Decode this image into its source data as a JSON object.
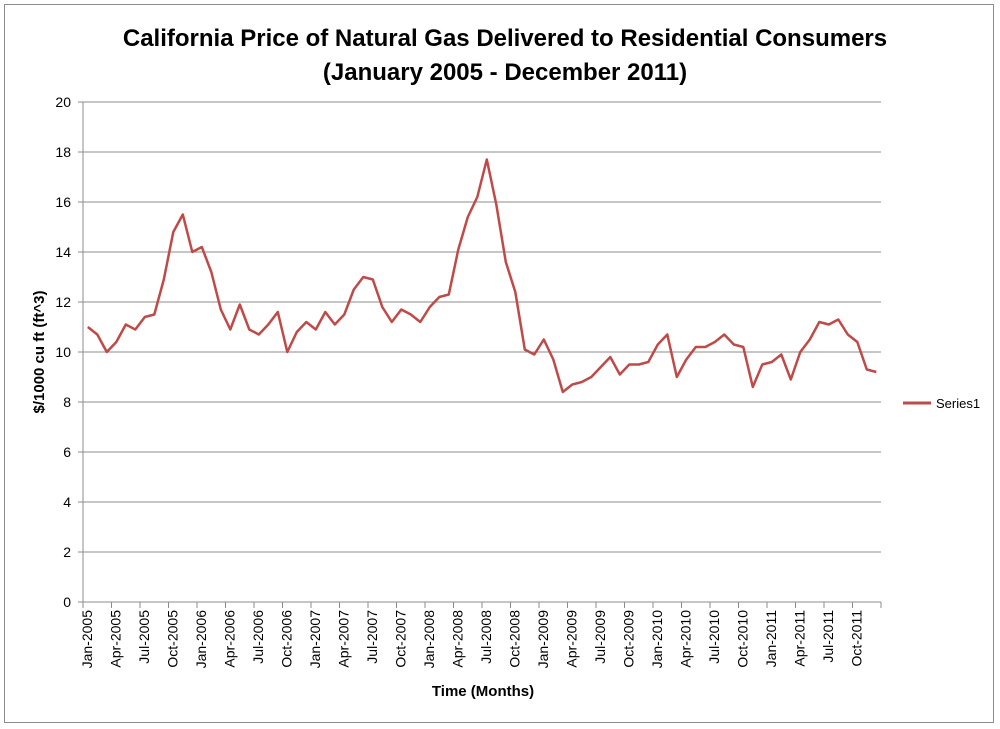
{
  "chart_data": {
    "type": "line",
    "title": [
      "California Price of Natural Gas Delivered to Residential Consumers",
      "(January 2005 - December 2011)"
    ],
    "xlabel": "Time (Months)",
    "ylabel": "$/1000  cu ft (ft^3)",
    "ylim": [
      0,
      20
    ],
    "yticks": [
      0,
      2,
      4,
      6,
      8,
      10,
      12,
      14,
      16,
      18,
      20
    ],
    "grid": true,
    "legend_position": "right",
    "x_tick_labels": [
      "Jan-2005",
      "Apr-2005",
      "Jul-2005",
      "Oct-2005",
      "Jan-2006",
      "Apr-2006",
      "Jul-2006",
      "Oct-2006",
      "Jan-2007",
      "Apr-2007",
      "Jul-2007",
      "Oct-2007",
      "Jan-2008",
      "Apr-2008",
      "Jul-2008",
      "Oct-2008",
      "Jan-2009",
      "Apr-2009",
      "Jul-2009",
      "Oct-2009",
      "Jan-2010",
      "Apr-2010",
      "Jul-2010",
      "Oct-2010",
      "Jan-2011",
      "Apr-2011",
      "Jul-2011",
      "Oct-2011"
    ],
    "x_tick_every": 3,
    "series": [
      {
        "name": "Series1",
        "color": "#be4b48",
        "values": [
          11.0,
          10.7,
          10.0,
          10.4,
          11.1,
          10.9,
          11.4,
          11.5,
          12.9,
          14.8,
          15.5,
          14.0,
          14.2,
          13.2,
          11.7,
          10.9,
          11.9,
          10.9,
          10.7,
          11.1,
          11.6,
          10.0,
          10.8,
          11.2,
          10.9,
          11.6,
          11.1,
          11.5,
          12.5,
          13.0,
          12.9,
          11.8,
          11.2,
          11.7,
          11.5,
          11.2,
          11.8,
          12.2,
          12.3,
          14.1,
          15.4,
          16.2,
          17.7,
          15.9,
          13.6,
          12.4,
          10.1,
          9.9,
          10.5,
          9.7,
          8.4,
          8.7,
          8.8,
          9.0,
          9.4,
          9.8,
          9.1,
          9.5,
          9.5,
          9.6,
          10.3,
          10.7,
          9.0,
          9.7,
          10.2,
          10.2,
          10.4,
          10.7,
          10.3,
          10.2,
          8.6,
          9.5,
          9.6,
          9.9,
          8.9,
          10.0,
          10.5,
          11.2,
          11.1,
          11.3,
          10.7,
          10.4,
          9.3,
          9.2
        ]
      }
    ]
  }
}
